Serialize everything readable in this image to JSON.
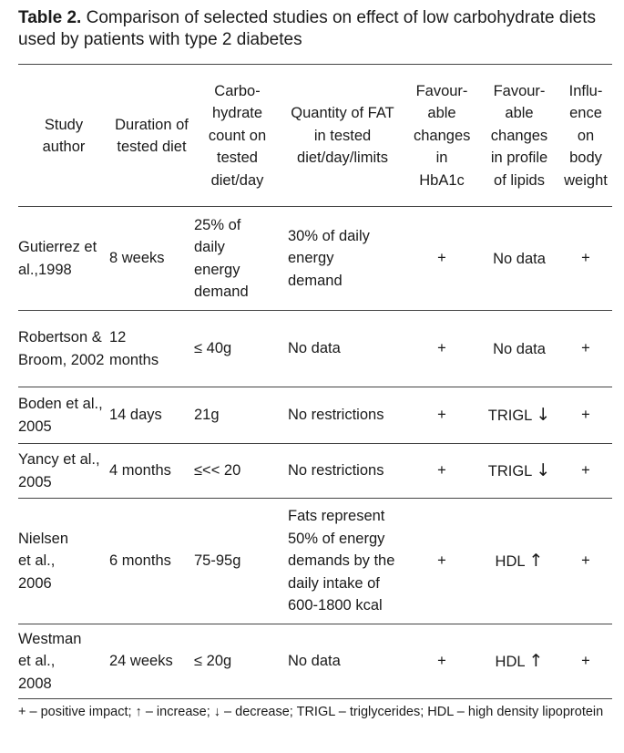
{
  "caption": {
    "label": "Table 2.",
    "text": " Comparison of selected studies on effect of low carbohydrate diets used by patients with type 2 diabetes"
  },
  "headers": {
    "study_author": "Study author",
    "duration": "Duration of tested diet",
    "carbohydrate": "Carbo-hydrate count on tested diet/day",
    "fat": "Quantity of FAT in tested diet/day/limits",
    "hba1c": "Favour-able changes in HbA1c",
    "lipids": "Favour-able changes in profile of lipids",
    "weight": "Influ-ence on body weight"
  },
  "rows": [
    {
      "author": "Gutierrez et al.,1998",
      "duration": "8 weeks",
      "carbohydrate": "25% of daily energy demand",
      "fat": "30% of daily energy demand",
      "hba1c": "+",
      "lipids": "No data",
      "lipids_arrow": "",
      "weight": "+"
    },
    {
      "author": "Robertson & Broom, 2002",
      "duration": "12 months",
      "carbohydrate": "≤ 40g",
      "fat": "No data",
      "hba1c": "+",
      "lipids": "No data",
      "lipids_arrow": "",
      "weight": "+"
    },
    {
      "author": "Boden et al., 2005",
      "duration": "14 days",
      "carbohydrate": "21g",
      "fat": "No restrictions",
      "hba1c": "+",
      "lipids": "TRIGL",
      "lipids_arrow": "↓",
      "weight": "+"
    },
    {
      "author": "Yancy et al., 2005",
      "duration": "4 months",
      "carbohydrate": "≤<< 20",
      "fat": "No restrictions",
      "hba1c": "+",
      "lipids": "TRIGL",
      "lipids_arrow": "↓",
      "weight": "+"
    },
    {
      "author": "Nielsen et al., 2006",
      "duration": "6 months",
      "carbohydrate": "75-95g",
      "fat": "Fats represent 50% of energy demands by the daily intake of 600-1800 kcal",
      "hba1c": "+",
      "lipids": "HDL",
      "lipids_arrow": "↑",
      "weight": "+"
    },
    {
      "author": "Westman et al., 2008",
      "duration": "24 weeks",
      "carbohydrate": "≤ 20g",
      "fat": "No data",
      "hba1c": "+",
      "lipids": "HDL",
      "lipids_arrow": "↑",
      "weight": "+"
    }
  ],
  "footnote": "+ – positive impact; ↑ – increase; ↓ – decrease; TRIGL – triglycerides; HDL – high density lipoprotein"
}
